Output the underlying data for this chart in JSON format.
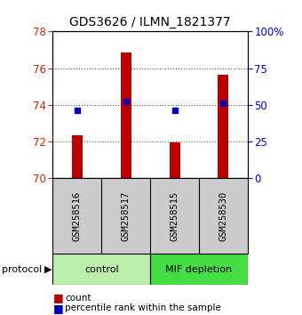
{
  "title": "GDS3626 / ILMN_1821377",
  "samples": [
    "GSM258516",
    "GSM258517",
    "GSM258515",
    "GSM258530"
  ],
  "bar_values": [
    72.35,
    76.85,
    71.95,
    75.65
  ],
  "percentile_pct": [
    46,
    52,
    46,
    51
  ],
  "y_min": 70,
  "y_max": 78,
  "y_ticks": [
    70,
    72,
    74,
    76,
    78
  ],
  "y2_ticks": [
    0,
    25,
    50,
    75,
    100
  ],
  "y2_tick_labels": [
    "0",
    "25",
    "50",
    "75",
    "100%"
  ],
  "bar_color": "#bb0000",
  "dot_color": "#0000bb",
  "groups": [
    {
      "label": "control",
      "samples": [
        0,
        1
      ],
      "color": "#bbeeaa"
    },
    {
      "label": "MIF depletion",
      "samples": [
        2,
        3
      ],
      "color": "#44dd44"
    }
  ],
  "protocol_label": "protocol",
  "background_color": "#ffffff",
  "plot_bg": "#ffffff",
  "tick_label_color_left": "#cc2200",
  "tick_label_color_right": "#0000cc",
  "grid_color": "#333333",
  "sample_box_color": "#cccccc"
}
